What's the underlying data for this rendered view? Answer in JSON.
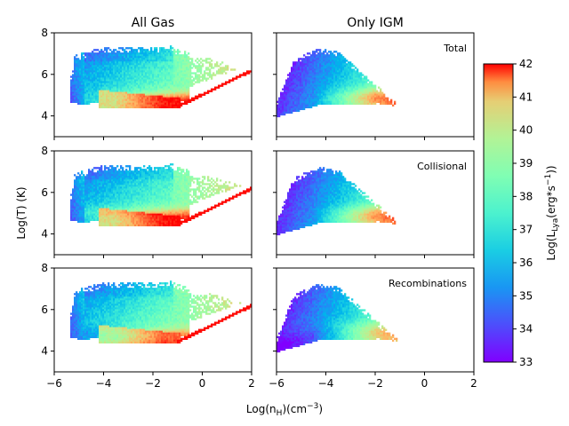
{
  "chart_data": {
    "type": "heatmap",
    "figure": {
      "xlabel_base": "Log(n",
      "xlabel_sub": "H",
      "xlabel_mid": ")(cm",
      "xlabel_sup": "−3",
      "xlabel_end": ")",
      "ylabel": "Log(T) (K)",
      "column_titles": [
        "All Gas",
        "Only IGM"
      ],
      "xlim": [
        -6,
        2
      ],
      "ylim": [
        3,
        8
      ],
      "xticks": [
        -6,
        -4,
        -2,
        0,
        2
      ],
      "xtick_labels": [
        "−6",
        "−4",
        "−2",
        "0",
        "2"
      ],
      "yticks": [
        4,
        6,
        8
      ],
      "ytick_labels": [
        "4",
        "6",
        "8"
      ]
    },
    "panels": [
      {
        "row": 0,
        "col": 0,
        "label": "",
        "component": "Total",
        "sample": "All Gas"
      },
      {
        "row": 0,
        "col": 1,
        "label": "Total",
        "component": "Total",
        "sample": "Only IGM"
      },
      {
        "row": 1,
        "col": 0,
        "label": "",
        "component": "Collisional",
        "sample": "All Gas"
      },
      {
        "row": 1,
        "col": 1,
        "label": "Collisional",
        "component": "Collisional",
        "sample": "Only IGM"
      },
      {
        "row": 2,
        "col": 0,
        "label": "",
        "component": "Recombinations",
        "sample": "All Gas"
      },
      {
        "row": 2,
        "col": 1,
        "label": "Recombinations",
        "component": "Recombinations",
        "sample": "Only IGM"
      }
    ],
    "colorbar": {
      "label_base": "Log(L",
      "label_sub": "Lya",
      "label_mid": "(erg*s",
      "label_sup": "−1",
      "label_end": "))",
      "min": 33,
      "max": 42,
      "ticks": [
        33,
        34,
        35,
        36,
        37,
        38,
        39,
        40,
        41,
        42
      ],
      "tick_labels": [
        "33",
        "34",
        "35",
        "36",
        "37",
        "38",
        "39",
        "40",
        "41",
        "42"
      ],
      "colormap": "rainbow"
    },
    "features": {
      "all_gas_high_T_plume": {
        "x_range": [
          -5.3,
          2.0
        ],
        "T_range": [
          4.5,
          7.3
        ],
        "L_typical": 36
      },
      "all_gas_dense_cold_branch": {
        "x_range": [
          -4.2,
          -0.9
        ],
        "T_range": [
          4.4,
          5.2
        ],
        "L_typical": 41
      },
      "all_gas_shock_line": {
        "x_range": [
          -1.0,
          2.0
        ],
        "T_range": [
          4.4,
          6.2
        ],
        "L_typical": 42
      },
      "igm_wedge_tip": {
        "x": -0.9,
        "T": 4.5,
        "L_typical": 40
      }
    }
  }
}
